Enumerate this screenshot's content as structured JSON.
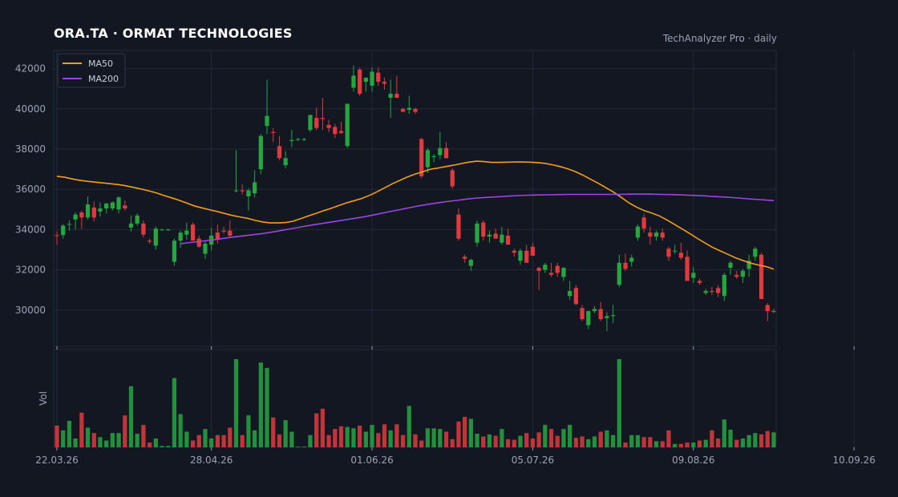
{
  "title": "ORA.TA  ·  ORMAT TECHNOLOGIES",
  "source": "TechAnalyzer Pro · daily",
  "colors": {
    "background": "#131722",
    "grid": "#232838",
    "axis_text": "#9aa3b5",
    "up": "#26a641",
    "down": "#e03a3e",
    "ma50": "#f59e1b",
    "ma200": "#9b45e4"
  },
  "chart_data": {
    "type": "candlestick",
    "title": "ORA.TA  ·  ORMAT TECHNOLOGIES",
    "subtitle": "TechAnalyzer Pro · daily",
    "ylim": [
      28200,
      42900
    ],
    "yticks": [
      30000,
      32000,
      34000,
      36000,
      38000,
      40000,
      42000
    ],
    "xticks": [
      {
        "index": 0,
        "label": "22.03.26"
      },
      {
        "index": 25,
        "label": "28.04.26"
      },
      {
        "index": 51,
        "label": "01.06.26"
      },
      {
        "index": 77,
        "label": "05.07.26"
      },
      {
        "index": 103,
        "label": "09.08.26"
      },
      {
        "index": 129,
        "label": "10.09.26"
      }
    ],
    "volume_ylabel": "Vol",
    "legend": {
      "position": "top-left",
      "entries": [
        "MA50",
        "MA200"
      ]
    },
    "grid": true,
    "series": [
      {
        "name": "MA50",
        "values": [
          36650,
          36600,
          36520,
          36450,
          36400,
          36360,
          36320,
          36280,
          36240,
          36180,
          36100,
          36020,
          35930,
          35830,
          35700,
          35580,
          35460,
          35320,
          35180,
          35080,
          34990,
          34900,
          34800,
          34700,
          34630,
          34560,
          34460,
          34380,
          34330,
          34330,
          34350,
          34420,
          34550,
          34680,
          34810,
          34940,
          35060,
          35200,
          35330,
          35440,
          35550,
          35700,
          35880,
          36080,
          36280,
          36450,
          36620,
          36760,
          36880,
          37000,
          37060,
          37130,
          37200,
          37280,
          37350,
          37400,
          37380,
          37340,
          37340,
          37350,
          37360,
          37360,
          37350,
          37330,
          37290,
          37220,
          37130,
          37020,
          36880,
          36700,
          36500,
          36300,
          36080,
          35860,
          35600,
          35330,
          35120,
          34950,
          34820,
          34680,
          34480,
          34250,
          34030,
          33800,
          33560,
          33330,
          33110,
          32940,
          32770,
          32600,
          32460,
          32330,
          32240,
          32160,
          32040
        ]
      },
      {
        "name": "MA200",
        "values": [
          33300,
          33360,
          33420,
          33480,
          33550,
          33620,
          33680,
          33740,
          33800,
          33880,
          33970,
          34060,
          34150,
          34240,
          34320,
          34400,
          34480,
          34560,
          34640,
          34740,
          34850,
          34950,
          35050,
          35150,
          35240,
          35320,
          35390,
          35450,
          35520,
          35570,
          35600,
          35630,
          35660,
          35690,
          35710,
          35720,
          35730,
          35740,
          35750,
          35750,
          35750,
          35750,
          35750,
          35750,
          35760,
          35760,
          35760,
          35750,
          35740,
          35720,
          35700,
          35680,
          35650,
          35620,
          35590,
          35550,
          35510,
          35480,
          35440
        ]
      }
    ],
    "ohlcv": [
      [
        33720,
        33900,
        33250,
        33680,
        3.2
      ],
      [
        33730,
        34280,
        33550,
        34200,
        2.5
      ],
      [
        34250,
        34450,
        33950,
        34280,
        3.9
      ],
      [
        34500,
        34850,
        34000,
        34750,
        1.3
      ],
      [
        34850,
        34950,
        34050,
        34600,
        5.1
      ],
      [
        34600,
        35650,
        34500,
        35250,
        2.9
      ],
      [
        35100,
        35400,
        34400,
        34600,
        2.1
      ],
      [
        34900,
        35350,
        34650,
        35050,
        1.5
      ],
      [
        35050,
        35300,
        34800,
        35300,
        1.0
      ],
      [
        35050,
        35400,
        34950,
        35350,
        2.1
      ],
      [
        35000,
        35650,
        34800,
        35600,
        2.1
      ],
      [
        35200,
        35450,
        34950,
        35050,
        4.7
      ],
      [
        34100,
        34700,
        33900,
        34300,
        9.0
      ],
      [
        34300,
        34800,
        34200,
        34700,
        2.0
      ],
      [
        34300,
        34450,
        33600,
        33750,
        3.3
      ],
      [
        33450,
        33550,
        33300,
        33400,
        0.7
      ],
      [
        33200,
        34150,
        33000,
        34050,
        1.3
      ],
      [
        34000,
        34050,
        33950,
        34000,
        0.2
      ],
      [
        34000,
        34050,
        33950,
        34000,
        0.2
      ],
      [
        32400,
        33550,
        32200,
        33450,
        10.2
      ],
      [
        33450,
        33950,
        33100,
        33850,
        4.9
      ],
      [
        33750,
        34350,
        33500,
        33950,
        2.3
      ],
      [
        34250,
        34350,
        33450,
        33450,
        1.0
      ],
      [
        33550,
        33700,
        33100,
        33150,
        1.8
      ],
      [
        32800,
        33450,
        32550,
        33300,
        2.7
      ],
      [
        33250,
        34100,
        32950,
        33700,
        1.3
      ],
      [
        33850,
        34250,
        33300,
        33500,
        1.8
      ],
      [
        33950,
        34150,
        33800,
        33900,
        1.8
      ],
      [
        33950,
        34450,
        33650,
        33700,
        2.9
      ],
      [
        35950,
        37950,
        35850,
        35950,
        13.0
      ],
      [
        35950,
        36250,
        35750,
        35900,
        1.8
      ],
      [
        35650,
        36050,
        34950,
        35950,
        4.7
      ],
      [
        35800,
        36950,
        35600,
        36350,
        2.5
      ],
      [
        37000,
        38750,
        36750,
        38650,
        12.5
      ],
      [
        39150,
        41450,
        38750,
        39650,
        11.7
      ],
      [
        38850,
        39050,
        38350,
        38800,
        4.4
      ],
      [
        38150,
        38650,
        37450,
        37550,
        1.9
      ],
      [
        37200,
        37900,
        37050,
        37550,
        4.0
      ],
      [
        38400,
        38950,
        38100,
        38450,
        2.3
      ],
      [
        38500,
        38550,
        38400,
        38500,
        0.1
      ],
      [
        38500,
        38550,
        38400,
        38500,
        0.1
      ],
      [
        38950,
        39450,
        38850,
        39700,
        1.8
      ],
      [
        39550,
        40050,
        38950,
        39050,
        5.0
      ],
      [
        39550,
        40550,
        38950,
        39500,
        5.7
      ],
      [
        39200,
        39450,
        38850,
        39050,
        1.8
      ],
      [
        39100,
        39250,
        38550,
        38750,
        2.7
      ],
      [
        38900,
        39350,
        38750,
        38800,
        3.1
      ],
      [
        38150,
        40150,
        38050,
        40250,
        3.0
      ],
      [
        41050,
        42150,
        40850,
        41650,
        2.8
      ],
      [
        41950,
        42050,
        40650,
        40750,
        3.2
      ],
      [
        41350,
        41550,
        40850,
        41550,
        2.3
      ],
      [
        41150,
        42050,
        40850,
        41850,
        3.3
      ],
      [
        41800,
        42050,
        41150,
        41350,
        2.1
      ],
      [
        41350,
        41550,
        40950,
        41250,
        3.4
      ],
      [
        40550,
        41450,
        39550,
        40750,
        2.5
      ],
      [
        40750,
        41650,
        40550,
        40550,
        3.4
      ],
      [
        40000,
        40050,
        39850,
        39850,
        1.8
      ],
      [
        39950,
        40650,
        39750,
        40050,
        6.1
      ],
      [
        40000,
        40050,
        39750,
        39850,
        1.9
      ],
      [
        38500,
        38550,
        36550,
        36650,
        1.0
      ],
      [
        37100,
        38050,
        36800,
        37950,
        2.8
      ],
      [
        37600,
        37750,
        37350,
        37650,
        2.8
      ],
      [
        37700,
        38850,
        37500,
        38050,
        2.7
      ],
      [
        38050,
        38350,
        37550,
        37550,
        2.3
      ],
      [
        36950,
        37050,
        36050,
        36150,
        1.2
      ],
      [
        34750,
        35050,
        33450,
        33550,
        3.8
      ],
      [
        32650,
        32750,
        32350,
        32550,
        4.5
      ],
      [
        32200,
        32550,
        31950,
        32500,
        4.2
      ],
      [
        33350,
        34450,
        33150,
        34300,
        2.0
      ],
      [
        34350,
        34450,
        33450,
        33650,
        1.6
      ],
      [
        33650,
        33950,
        33350,
        33750,
        1.9
      ],
      [
        33800,
        34050,
        33550,
        33550,
        1.7
      ],
      [
        33350,
        34150,
        33250,
        33750,
        2.7
      ],
      [
        33700,
        34050,
        33250,
        33250,
        1.2
      ],
      [
        32950,
        33050,
        32650,
        32850,
        1.1
      ],
      [
        32450,
        33050,
        32250,
        32950,
        1.7
      ],
      [
        32950,
        33250,
        32350,
        32350,
        2.1
      ],
      [
        33150,
        33350,
        32700,
        32700,
        1.3
      ],
      [
        32100,
        32150,
        31000,
        31950,
        2.2
      ],
      [
        32000,
        32350,
        31850,
        32250,
        3.3
      ],
      [
        31850,
        32350,
        31650,
        31750,
        2.7
      ],
      [
        32200,
        32350,
        31650,
        31850,
        1.7
      ],
      [
        31650,
        32150,
        31450,
        32100,
        2.7
      ],
      [
        30700,
        31450,
        30500,
        30950,
        3.3
      ],
      [
        31100,
        31250,
        30250,
        30300,
        1.4
      ],
      [
        30100,
        30250,
        29450,
        29550,
        1.6
      ],
      [
        29250,
        29950,
        29050,
        29950,
        1.2
      ],
      [
        29950,
        30200,
        29850,
        30050,
        1.6
      ],
      [
        30050,
        30400,
        29450,
        29550,
        2.3
      ],
      [
        29600,
        29900,
        28950,
        29700,
        2.5
      ],
      [
        29700,
        30250,
        29350,
        29750,
        1.8
      ],
      [
        31250,
        32750,
        31150,
        32350,
        13.0
      ],
      [
        32350,
        32800,
        31950,
        32050,
        0.7
      ],
      [
        32400,
        32750,
        32150,
        32600,
        1.8
      ],
      [
        33600,
        34250,
        33450,
        34150,
        1.8
      ],
      [
        34600,
        34800,
        33850,
        34050,
        1.5
      ],
      [
        33850,
        34150,
        33250,
        33650,
        1.5
      ],
      [
        33650,
        33950,
        33450,
        33850,
        0.9
      ],
      [
        33850,
        34050,
        33450,
        33600,
        0.9
      ],
      [
        33050,
        33150,
        32450,
        32650,
        2.5
      ],
      [
        32950,
        33250,
        32800,
        32950,
        0.5
      ],
      [
        32850,
        33350,
        32500,
        32600,
        0.5
      ],
      [
        32650,
        32950,
        31450,
        31450,
        0.7
      ],
      [
        31600,
        32150,
        31350,
        31850,
        0.7
      ],
      [
        31450,
        31550,
        31250,
        31350,
        1.0
      ],
      [
        30850,
        31050,
        30750,
        30950,
        1.1
      ],
      [
        30950,
        31150,
        30750,
        30900,
        2.5
      ],
      [
        31100,
        31250,
        30650,
        30850,
        1.3
      ],
      [
        30700,
        31850,
        30450,
        31750,
        4.1
      ],
      [
        32100,
        32450,
        31750,
        32350,
        2.6
      ],
      [
        31750,
        31950,
        31550,
        31650,
        1.1
      ],
      [
        31650,
        32050,
        31350,
        31950,
        1.3
      ],
      [
        32050,
        32750,
        31650,
        32450,
        1.8
      ],
      [
        32650,
        33150,
        32450,
        33050,
        2.1
      ],
      [
        32750,
        32850,
        30750,
        30550,
        1.9
      ],
      [
        30250,
        30350,
        29450,
        29950,
        2.4
      ],
      [
        29950,
        30050,
        29850,
        29950,
        2.2
      ]
    ]
  }
}
